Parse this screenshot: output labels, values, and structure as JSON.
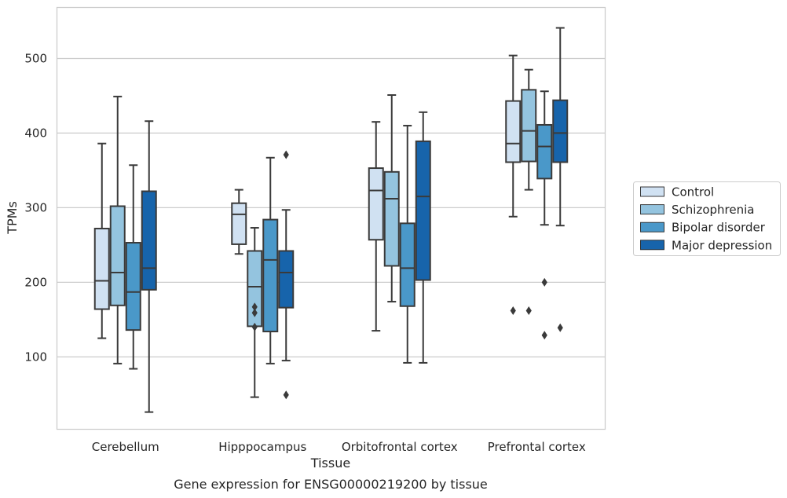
{
  "chart_data": {
    "type": "box",
    "title": "",
    "caption": "Gene expression for ENSG00000219200 by tissue",
    "xlabel": "Tissue",
    "ylabel": "TPMs",
    "ylim": [
      0,
      565
    ],
    "yticks": [
      100,
      200,
      300,
      400,
      500
    ],
    "grid": "horizontal",
    "legend_position": "right",
    "categories": [
      "Cerebellum",
      "Hipppocampus",
      "Orbitofrontal cortex",
      "Prefrontal cortex"
    ],
    "series": [
      {
        "name": "Control",
        "color": "#d0e1f2",
        "boxes": [
          {
            "whisker_low": 125,
            "q1": 164,
            "median": 202,
            "q3": 272,
            "whisker_high": 386,
            "outliers": []
          },
          {
            "whisker_low": 238,
            "q1": 251,
            "median": 291,
            "q3": 306,
            "whisker_high": 324,
            "outliers": []
          },
          {
            "whisker_low": 135,
            "q1": 257,
            "median": 323,
            "q3": 353,
            "whisker_high": 415,
            "outliers": []
          },
          {
            "whisker_low": 288,
            "q1": 361,
            "median": 386,
            "q3": 443,
            "whisker_high": 504,
            "outliers": [
              162
            ]
          }
        ]
      },
      {
        "name": "Schizophrenia",
        "color": "#94c4df",
        "boxes": [
          {
            "whisker_low": 91,
            "q1": 169,
            "median": 213,
            "q3": 302,
            "whisker_high": 449,
            "outliers": []
          },
          {
            "whisker_low": 46,
            "q1": 141,
            "median": 194,
            "q3": 242,
            "whisker_high": 273,
            "outliers": [
              140,
              159,
              167
            ]
          },
          {
            "whisker_low": 174,
            "q1": 222,
            "median": 312,
            "q3": 348,
            "whisker_high": 451,
            "outliers": []
          },
          {
            "whisker_low": 324,
            "q1": 362,
            "median": 403,
            "q3": 458,
            "whisker_high": 485,
            "outliers": [
              162
            ]
          }
        ]
      },
      {
        "name": "Bipolar disorder",
        "color": "#4a98c9",
        "boxes": [
          {
            "whisker_low": 84,
            "q1": 136,
            "median": 187,
            "q3": 253,
            "whisker_high": 357,
            "outliers": []
          },
          {
            "whisker_low": 91,
            "q1": 134,
            "median": 230,
            "q3": 284,
            "whisker_high": 367,
            "outliers": []
          },
          {
            "whisker_low": 92,
            "q1": 168,
            "median": 219,
            "q3": 279,
            "whisker_high": 410,
            "outliers": []
          },
          {
            "whisker_low": 277,
            "q1": 339,
            "median": 382,
            "q3": 411,
            "whisker_high": 456,
            "outliers": [
              129,
              200
            ]
          }
        ]
      },
      {
        "name": "Major depression",
        "color": "#1764ab",
        "boxes": [
          {
            "whisker_low": 26,
            "q1": 190,
            "median": 219,
            "q3": 322,
            "whisker_high": 416,
            "outliers": []
          },
          {
            "whisker_low": 95,
            "q1": 166,
            "median": 213,
            "q3": 242,
            "whisker_high": 297,
            "outliers": [
              49,
              371
            ]
          },
          {
            "whisker_low": 92,
            "q1": 203,
            "median": 315,
            "q3": 389,
            "whisker_high": 428,
            "outliers": []
          },
          {
            "whisker_low": 276,
            "q1": 361,
            "median": 400,
            "q3": 444,
            "whisker_high": 541,
            "outliers": [
              139
            ]
          }
        ]
      }
    ]
  }
}
